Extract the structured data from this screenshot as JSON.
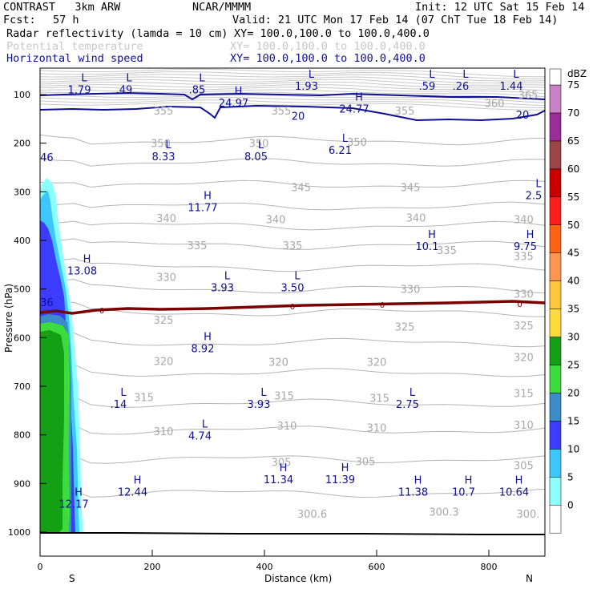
{
  "header": {
    "model": "CONTRAST   3km ARW",
    "org": "NCAR/MMMM",
    "init": "Init: 12 UTC Sat 15 Feb 14",
    "fcst_label": "Fcst:",
    "fcst_value": "57 h",
    "valid": "Valid: 21 UTC Mon 17 Feb 14 (07 ChT Tue 18 Feb 14)",
    "fields": [
      {
        "name": "Radar reflectivity (lamda = 10 cm)",
        "xy": "XY= 100.0,100.0 to 100.0,400.0",
        "color": "#000000"
      },
      {
        "name": "Potential temperature",
        "xy": "XY= 100.0,100.0 to 100.0,400.0",
        "color": "#c8c8c8"
      },
      {
        "name": "Horizontal wind speed",
        "xy": "XY= 100.0,100.0 to 100.0,400.0",
        "color": "#0f0f96"
      }
    ]
  },
  "chart_data": {
    "type": "cross-section contour",
    "xlabel": "Distance (km)",
    "ylabel": "Pressure (hPa)",
    "xlim": [
      0,
      900
    ],
    "ylim": [
      1050,
      50
    ],
    "x_ticks": [
      0,
      200,
      400,
      600,
      800
    ],
    "y_ticks": [
      100,
      200,
      300,
      400,
      500,
      600,
      700,
      800,
      900,
      1000
    ],
    "x_end_labels": {
      "left": "S",
      "right": "N"
    },
    "colorbar": {
      "unit": "dBZ",
      "levels": [
        0,
        5,
        10,
        15,
        20,
        25,
        30,
        35,
        40,
        45,
        50,
        55,
        60,
        65,
        70,
        75
      ],
      "colors": [
        "#8cffff",
        "#3cc8ff",
        "#3c3cff",
        "#3c8cc8",
        "#3cdc3c",
        "#14a014",
        "#ffdc3c",
        "#ffc83c",
        "#ff9650",
        "#ff6414",
        "#ff1e1e",
        "#c80000",
        "#9b4646",
        "#9b2d9b",
        "#c882c8"
      ]
    },
    "wind_isotachs": [
      {
        "value": "20",
        "x": 460,
        "p": 145
      },
      {
        "value": "20",
        "x": 860,
        "p": 143
      },
      {
        "value": "0",
        "x": 110,
        "p": 543
      },
      {
        "value": "0",
        "x": 450,
        "p": 535
      },
      {
        "value": "0",
        "x": 610,
        "p": 532
      },
      {
        "value": "0",
        "x": 855,
        "p": 530
      }
    ],
    "theta_labels": [
      {
        "value": "355",
        "x": 220,
        "p": 133
      },
      {
        "value": "355",
        "x": 430,
        "p": 133
      },
      {
        "value": "355",
        "x": 650,
        "p": 133
      },
      {
        "value": "360",
        "x": 810,
        "p": 117
      },
      {
        "value": "365",
        "x": 870,
        "p": 100
      },
      {
        "value": "350",
        "x": 215,
        "p": 200
      },
      {
        "value": "350",
        "x": 390,
        "p": 200
      },
      {
        "value": "350",
        "x": 565,
        "p": 197
      },
      {
        "value": "345",
        "x": 465,
        "p": 290
      },
      {
        "value": "345",
        "x": 660,
        "p": 290
      },
      {
        "value": "340",
        "x": 225,
        "p": 354
      },
      {
        "value": "340",
        "x": 420,
        "p": 356
      },
      {
        "value": "340",
        "x": 670,
        "p": 353
      },
      {
        "value": "340",
        "x": 862,
        "p": 356
      },
      {
        "value": "335",
        "x": 280,
        "p": 410
      },
      {
        "value": "335",
        "x": 450,
        "p": 410
      },
      {
        "value": "335",
        "x": 725,
        "p": 420
      },
      {
        "value": "335",
        "x": 862,
        "p": 432
      },
      {
        "value": "330",
        "x": 225,
        "p": 475
      },
      {
        "value": "330",
        "x": 660,
        "p": 500
      },
      {
        "value": "330",
        "x": 862,
        "p": 510
      },
      {
        "value": "325",
        "x": 220,
        "p": 563
      },
      {
        "value": "325",
        "x": 650,
        "p": 577
      },
      {
        "value": "325",
        "x": 862,
        "p": 575
      },
      {
        "value": "320",
        "x": 220,
        "p": 648
      },
      {
        "value": "320",
        "x": 425,
        "p": 650
      },
      {
        "value": "320",
        "x": 600,
        "p": 650
      },
      {
        "value": "320",
        "x": 862,
        "p": 640
      },
      {
        "value": "315",
        "x": 185,
        "p": 722
      },
      {
        "value": "315",
        "x": 435,
        "p": 719
      },
      {
        "value": "315",
        "x": 605,
        "p": 724
      },
      {
        "value": "315",
        "x": 862,
        "p": 714
      },
      {
        "value": "310",
        "x": 220,
        "p": 792
      },
      {
        "value": "310",
        "x": 440,
        "p": 781
      },
      {
        "value": "310",
        "x": 600,
        "p": 785
      },
      {
        "value": "310",
        "x": 862,
        "p": 779
      },
      {
        "value": "305",
        "x": 430,
        "p": 856
      },
      {
        "value": "305",
        "x": 580,
        "p": 854
      },
      {
        "value": "305",
        "x": 862,
        "p": 862
      },
      {
        "value": "300.6",
        "x": 485,
        "p": 962
      },
      {
        "value": "300.3",
        "x": 720,
        "p": 958
      },
      {
        "value": "300.",
        "x": 870,
        "p": 962
      }
    ],
    "extrema": [
      {
        "type": "L",
        "value": "1.79",
        "x": 70,
        "p": 83
      },
      {
        "type": "L",
        "value": ".49",
        "x": 150,
        "p": 83
      },
      {
        "type": "L",
        "value": ".85",
        "x": 280,
        "p": 83
      },
      {
        "type": "H",
        "value": "24.97",
        "x": 345,
        "p": 110
      },
      {
        "type": "L",
        "value": "1.93",
        "x": 475,
        "p": 75
      },
      {
        "type": "H",
        "value": "24.77",
        "x": 560,
        "p": 122
      },
      {
        "type": "L",
        "value": ".59",
        "x": 690,
        "p": 75
      },
      {
        "type": "L",
        "value": ".26",
        "x": 750,
        "p": 75
      },
      {
        "type": "L",
        "value": "1.44",
        "x": 840,
        "p": 75
      },
      {
        "type": "",
        "value": "46",
        "x": 12,
        "p": 222
      },
      {
        "type": "L",
        "value": "8.33",
        "x": 220,
        "p": 220
      },
      {
        "type": "L",
        "value": "8.05",
        "x": 385,
        "p": 220
      },
      {
        "type": "L",
        "value": "6.21",
        "x": 535,
        "p": 207
      },
      {
        "type": "L",
        "value": "2.5",
        "x": 880,
        "p": 300
      },
      {
        "type": "H",
        "value": "11.77",
        "x": 290,
        "p": 325
      },
      {
        "type": "H",
        "value": "10.1",
        "x": 690,
        "p": 405
      },
      {
        "type": "H",
        "value": "9.75",
        "x": 865,
        "p": 405
      },
      {
        "type": "H",
        "value": "13.08",
        "x": 75,
        "p": 455
      },
      {
        "type": "L",
        "value": "3.93",
        "x": 325,
        "p": 490
      },
      {
        "type": "L",
        "value": "3.50",
        "x": 450,
        "p": 490
      },
      {
        "type": "",
        "value": "36",
        "x": 12,
        "p": 520
      },
      {
        "type": "H",
        "value": "8.92",
        "x": 290,
        "p": 615
      },
      {
        "type": "L",
        "value": ".14",
        "x": 140,
        "p": 730
      },
      {
        "type": "L",
        "value": "3.93",
        "x": 390,
        "p": 730
      },
      {
        "type": "L",
        "value": "2.75",
        "x": 655,
        "p": 730
      },
      {
        "type": "L",
        "value": "4.74",
        "x": 285,
        "p": 795
      },
      {
        "type": "H",
        "value": "11.34",
        "x": 425,
        "p": 885
      },
      {
        "type": "H",
        "value": "11.39",
        "x": 535,
        "p": 885
      },
      {
        "type": "H",
        "value": "12.44",
        "x": 165,
        "p": 910
      },
      {
        "type": "H",
        "value": "11.38",
        "x": 665,
        "p": 910
      },
      {
        "type": "H",
        "value": "10.7",
        "x": 755,
        "p": 910
      },
      {
        "type": "H",
        "value": "10.64",
        "x": 845,
        "p": 910
      },
      {
        "type": "H",
        "value": "12.17",
        "x": 60,
        "p": 935
      }
    ]
  }
}
